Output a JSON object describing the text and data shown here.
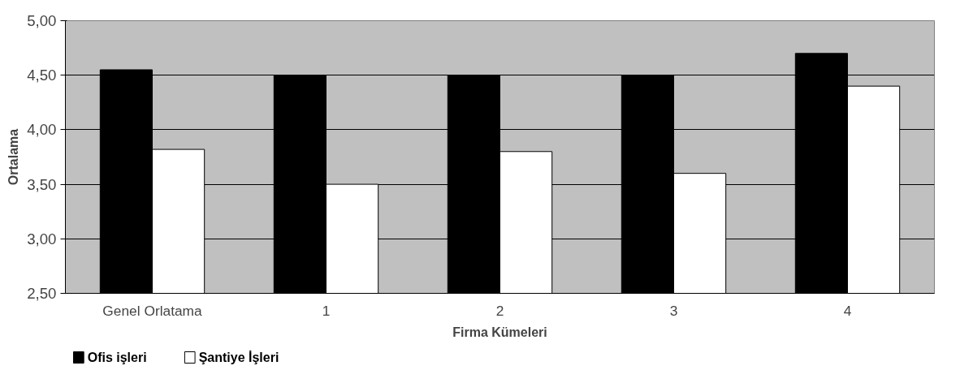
{
  "chart_data": {
    "type": "bar",
    "xlabel": "Firma Kümeleri",
    "ylabel": "Ortalama",
    "categories": [
      "Genel Orlatama",
      "1",
      "2",
      "3",
      "4"
    ],
    "series": [
      {
        "name": "Ofis işleri",
        "color": "#000000",
        "values": [
          4.55,
          4.5,
          4.5,
          4.5,
          4.7
        ]
      },
      {
        "name": "Şantiye İşleri",
        "color": "#ffffff",
        "values": [
          3.82,
          3.5,
          3.8,
          3.6,
          4.4
        ]
      }
    ],
    "ylim": [
      2.5,
      5.0
    ],
    "yticks": [
      {
        "value": 2.5,
        "label": "2,50"
      },
      {
        "value": 3.0,
        "label": "3,00"
      },
      {
        "value": 3.5,
        "label": "3,50"
      },
      {
        "value": 4.0,
        "label": "4,00"
      },
      {
        "value": 4.5,
        "label": "4,50"
      },
      {
        "value": 5.0,
        "label": "5,00"
      }
    ],
    "grid": "y",
    "legend": "bottom left"
  }
}
